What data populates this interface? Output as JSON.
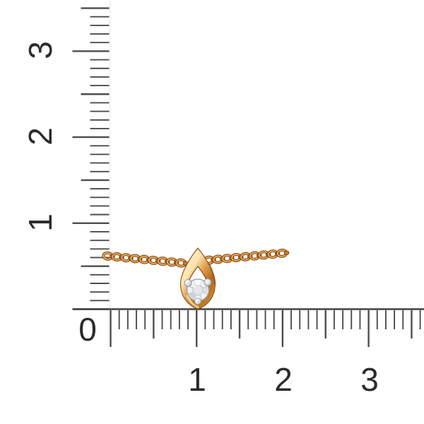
{
  "rulers": {
    "origin_label": "0",
    "vertical_labels": [
      "3",
      "2",
      "1"
    ],
    "horizontal_labels": [
      "1",
      "2",
      "3"
    ]
  },
  "colors": {
    "background": "#ffffff",
    "tick": "#4d4d4d",
    "baseline": "#414141",
    "ruler_edge_faint": "#ebebeb",
    "label_text": "#2b2b2b",
    "gold_dark": "#8a4a10",
    "gold_mid": "#c9812c",
    "gold_highlight": "#f9e2ad",
    "chain_inner_highlight": "#ecb468",
    "diamond_fill": "#eff1f4",
    "diamond_facet": "#c9ccd3",
    "diamond_edge": "#999ba3",
    "prong_light": "#ffffff",
    "prong_dark": "#a3a4ab"
  }
}
